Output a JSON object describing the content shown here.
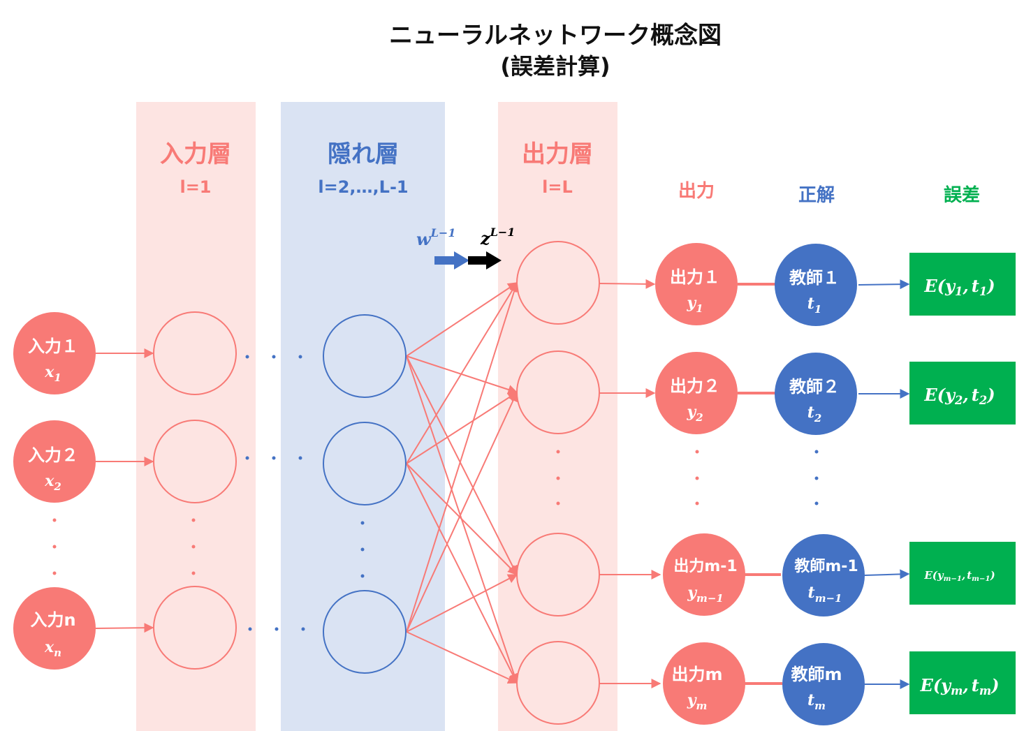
{
  "title": {
    "line1": "ニューラルネットワーク概念図",
    "line2": "(誤差計算)"
  },
  "layers": {
    "input": {
      "name": "入力層",
      "index": "l=1"
    },
    "hidden": {
      "name": "隠れ層",
      "index": "l=2,…,L-1"
    },
    "output": {
      "name": "出力層",
      "index": "l=L"
    }
  },
  "columns": {
    "output": "出力",
    "teacher": "正解",
    "error": "誤差"
  },
  "weight": {
    "w_base": "w",
    "z_base": "z",
    "sup": "L−1"
  },
  "inputs": [
    {
      "label": "入力１",
      "var": "x",
      "sub": "1"
    },
    {
      "label": "入力２",
      "var": "x",
      "sub": "2"
    },
    {
      "label": "入力n",
      "var": "x",
      "sub": "n"
    }
  ],
  "outputs": [
    {
      "label": "出力１",
      "var": "y",
      "sub": "1"
    },
    {
      "label": "出力２",
      "var": "y",
      "sub": "2"
    },
    {
      "label": "出力m-1",
      "var": "y",
      "sub": "m−1"
    },
    {
      "label": "出力m",
      "var": "y",
      "sub": "m"
    }
  ],
  "teachers": [
    {
      "label": "教師１",
      "var": "t",
      "sub": "1"
    },
    {
      "label": "教師２",
      "var": "t",
      "sub": "2"
    },
    {
      "label": "教師m-1",
      "var": "t",
      "sub": "m−1"
    },
    {
      "label": "教師m",
      "var": "t",
      "sub": "m"
    }
  ],
  "errors": [
    {
      "fn": "E",
      "open": "(",
      "y": "y",
      "ysub": "1",
      "comma": ",",
      "t": "t",
      "tsub": "1",
      "close": ")"
    },
    {
      "fn": "E",
      "open": "(",
      "y": "y",
      "ysub": "2",
      "comma": ",",
      "t": "t",
      "tsub": "2",
      "close": ")"
    },
    {
      "fn": "E",
      "open": "(",
      "y": "y",
      "ysub": "m−1",
      "comma": ",",
      "t": "t",
      "tsub": "m−1",
      "close": ")"
    },
    {
      "fn": "E",
      "open": "(",
      "y": "y",
      "ysub": "m",
      "comma": ",",
      "t": "t",
      "tsub": "m",
      "close": ")"
    }
  ],
  "colors": {
    "pink_band": "#fde4e2",
    "blue_band": "#dae3f3",
    "salmon": "#f87a76",
    "blue": "#4472c4",
    "green": "#00b050",
    "white": "#ffffff",
    "black": "#000000"
  }
}
